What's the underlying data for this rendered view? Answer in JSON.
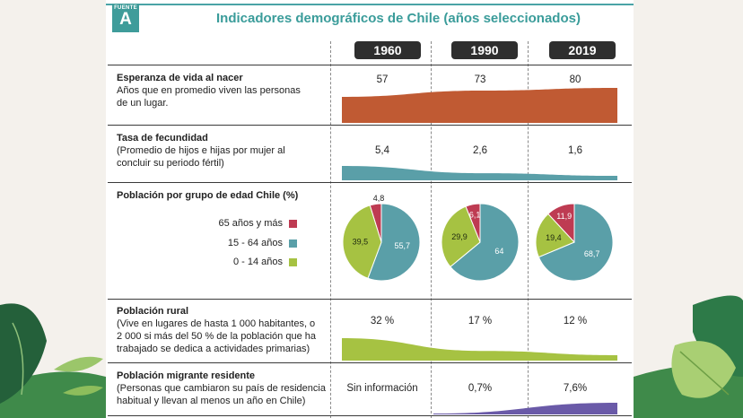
{
  "colors": {
    "teal": "#5a9fa8",
    "orange": "#c05a33",
    "green": "#a6c242",
    "red": "#be3b52",
    "purple": "#6a5aa8",
    "title": "#3a9c9a"
  },
  "badge": {
    "small": "FUENTE",
    "letter": "A"
  },
  "title": "Indicadores demográficos de Chile (años seleccionados)",
  "years": [
    "1960",
    "1990",
    "2019"
  ],
  "rows": {
    "esperanza": {
      "title": "Esperanza de vida al nacer",
      "desc": [
        "Años que en promedio viven las personas",
        "de un lugar."
      ],
      "values": [
        "57",
        "73",
        "80"
      ]
    },
    "fecundidad": {
      "title": "Tasa de fecundidad",
      "desc": [
        "(Promedio de hijos e hijas por mujer al",
        "concluir su periodo fértil)"
      ],
      "values": [
        "5,4",
        "2,6",
        "1,6"
      ]
    },
    "poblacion": {
      "title": "Población por grupo de edad Chile (%)",
      "legend": [
        "65 años y más",
        "15 - 64 años",
        "0 - 14 años"
      ]
    },
    "rural": {
      "title": "Población rural",
      "desc": [
        "(Vive en lugares de hasta 1 000 habitantes, o",
        "2 000 si más del 50 % de la población que ha",
        "trabajado se dedica a actividades primarias)"
      ],
      "values": [
        "32 %",
        "17 %",
        "12 %"
      ]
    },
    "migrante": {
      "title": "Población migrante residente",
      "desc": [
        "(Personas que cambiaron su país de residencia",
        "habitual y llevan al menos un año en Chile)"
      ],
      "values": [
        "Sin información",
        "0,7%",
        "7,6%"
      ]
    }
  },
  "chart_data": [
    {
      "type": "area",
      "title": "Esperanza de vida al nacer",
      "categories": [
        "1960",
        "1990",
        "2019"
      ],
      "values": [
        57,
        73,
        80
      ],
      "unit": "años"
    },
    {
      "type": "area",
      "title": "Tasa de fecundidad",
      "categories": [
        "1960",
        "1990",
        "2019"
      ],
      "values": [
        5.4,
        2.6,
        1.6
      ]
    },
    {
      "type": "pie",
      "title": "Población por grupo de edad Chile (%)",
      "categories": [
        "1960",
        "1990",
        "2019"
      ],
      "series": [
        {
          "name": "65 años y más",
          "values": [
            4.8,
            6.1,
            11.9
          ]
        },
        {
          "name": "15 - 64 años",
          "values": [
            55.7,
            64,
            68.7
          ]
        },
        {
          "name": "0 - 14 años",
          "values": [
            39.5,
            29.9,
            19.4
          ]
        }
      ],
      "labels": [
        [
          "4,8",
          "55,7",
          "39,5"
        ],
        [
          "6,1",
          "64",
          "29,9"
        ],
        [
          "11,9",
          "68,7",
          "19,4"
        ]
      ]
    },
    {
      "type": "area",
      "title": "Población rural",
      "categories": [
        "1960",
        "1990",
        "2019"
      ],
      "values": [
        32,
        17,
        12
      ],
      "unit": "%"
    },
    {
      "type": "area",
      "title": "Población migrante residente",
      "categories": [
        "1990",
        "2019"
      ],
      "values": [
        0.7,
        7.6
      ],
      "unit": "%"
    }
  ]
}
